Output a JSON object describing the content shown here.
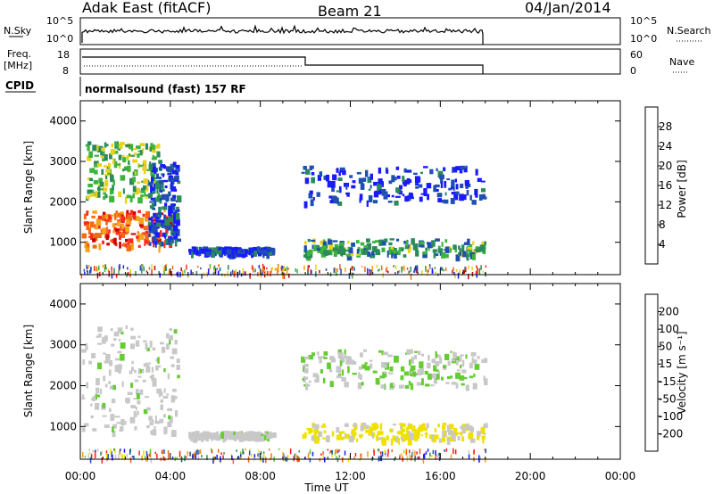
{
  "header": {
    "station": "Adak East (fitACF)",
    "beam": "Beam 21",
    "date": "04/Jan/2014"
  },
  "strip": {
    "nsky_label": "N.Sky",
    "nsky_tick_top": "10^5",
    "nsky_tick_bottom": "10^0",
    "nsearch_label": "N.Search",
    "nsearch_tick_top": "10^5",
    "nsearch_tick_bottom": "10^0",
    "freq_label_1": "Freq.",
    "freq_label_2": "[MHz]",
    "freq_tick_top": "18",
    "freq_tick_bottom": "8",
    "nave_label": "Nave",
    "nave_tick_top": "60",
    "nave_tick_bottom": "0",
    "cpid_label": "CPID",
    "cpid_text": "normalsound (fast) 157 RF"
  },
  "colors": {
    "power": [
      "#1a1aff",
      "#1f4fb0",
      "#2a8a5a",
      "#3cb43c",
      "#e8d21e",
      "#f5a31a",
      "#f26a14",
      "#ff2a1a",
      "#c80000"
    ],
    "velocity": [
      "#1a1aff",
      "#1f4fb0",
      "#2a8a5a",
      "#66cc33",
      "#c8c8c8",
      "#f0e000",
      "#f59d1a",
      "#f26414",
      "#ff1a1a"
    ]
  },
  "chart_data": [
    {
      "type": "heatmap",
      "name": "power",
      "ylabel": "Slant Range [km]",
      "xlabel": "",
      "colorbar_label": "Power [dB]",
      "colorbar_ticks": [
        "4",
        "8",
        "12",
        "16",
        "20",
        "24",
        "28"
      ],
      "yticks": [
        "1000",
        "2000",
        "3000",
        "4000"
      ],
      "ylim": [
        200,
        4500
      ],
      "xlim_hours": [
        0,
        24
      ],
      "echo_regions": [
        {
          "t0": 0.05,
          "t1": 4.0,
          "r0": 900,
          "r1": 1800,
          "value_db": 26
        },
        {
          "t0": 0.2,
          "t1": 3.5,
          "r0": 2100,
          "r1": 3500,
          "value_db": 14
        },
        {
          "t0": 3.0,
          "t1": 4.3,
          "r0": 1000,
          "r1": 3000,
          "value_db": 6
        },
        {
          "t0": 4.8,
          "t1": 8.5,
          "r0": 750,
          "r1": 900,
          "value_db": 6
        },
        {
          "t0": 9.8,
          "t1": 18.0,
          "r0": 2000,
          "r1": 2900,
          "value_db": 5
        },
        {
          "t0": 9.8,
          "t1": 18.0,
          "r0": 700,
          "r1": 1100,
          "value_db": 12
        }
      ]
    },
    {
      "type": "heatmap",
      "name": "velocity",
      "ylabel": "Slant Range [km]",
      "xlabel": "Time UT",
      "colorbar_label": "Velocity [m s⁻¹]",
      "colorbar_ticks": [
        "-200",
        "-100",
        "-50",
        "-15",
        "15",
        "50",
        "100",
        "200"
      ],
      "yticks": [
        "1000",
        "2000",
        "3000",
        "4000"
      ],
      "xticks": [
        "00:00",
        "04:00",
        "08:00",
        "12:00",
        "16:00",
        "20:00",
        "00:00"
      ],
      "ylim": [
        200,
        4500
      ],
      "xlim_hours": [
        0,
        24
      ],
      "echo_regions": [
        {
          "t0": 0.05,
          "t1": 4.3,
          "r0": 900,
          "r1": 3500,
          "value_ms": 0
        },
        {
          "t0": 4.8,
          "t1": 8.5,
          "r0": 750,
          "r1": 900,
          "value_ms": 0
        },
        {
          "t0": 9.8,
          "t1": 18.0,
          "r0": 700,
          "r1": 1100,
          "value_ms": -40
        },
        {
          "t0": 9.8,
          "t1": 18.0,
          "r0": 2000,
          "r1": 2900,
          "value_ms": 20
        }
      ]
    }
  ]
}
